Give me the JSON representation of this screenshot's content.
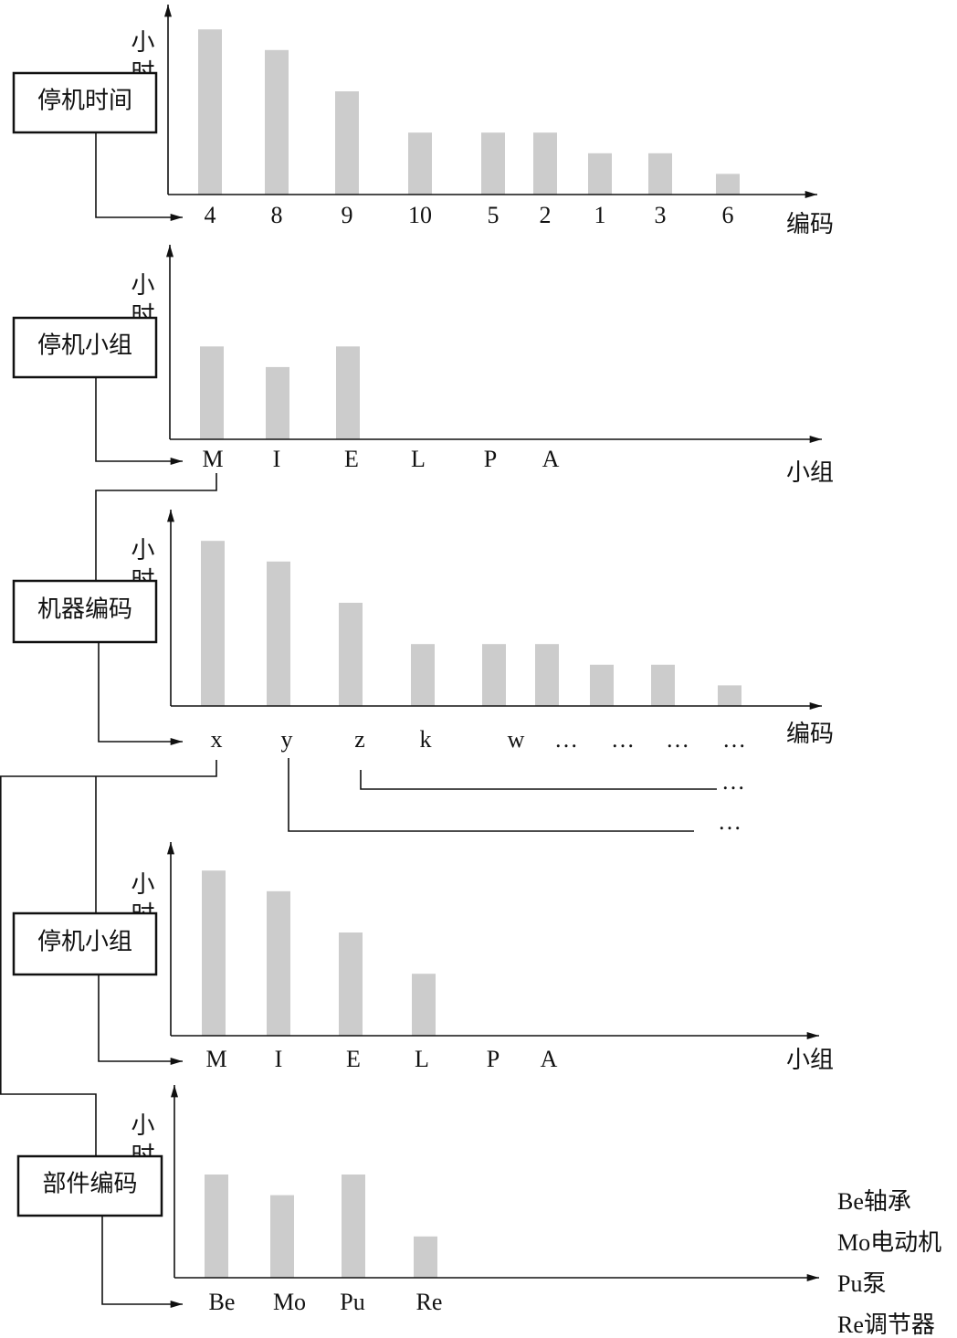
{
  "chart_data": [
    {
      "type": "bar",
      "box_label": "停机时间",
      "y_label": "小时",
      "x_label": "编码",
      "categories": [
        "4",
        "8",
        "9",
        "10",
        "5",
        "2",
        "1",
        "3",
        "6"
      ],
      "values": [
        8,
        7,
        5,
        3,
        3,
        3,
        2,
        2,
        1
      ],
      "ylim": [
        0,
        9
      ],
      "color": "#cccccc"
    },
    {
      "type": "bar",
      "box_label": "停机小组",
      "y_label": "小时",
      "x_label": "小组",
      "categories": [
        "M",
        "I",
        "E",
        "L",
        "P",
        "A"
      ],
      "values": [
        4.5,
        3.5,
        4.5,
        0,
        0,
        0
      ],
      "ylim": [
        0,
        9
      ],
      "color": "#cccccc"
    },
    {
      "type": "bar",
      "box_label": "机器编码",
      "y_label": "小时",
      "x_label": "编码",
      "categories": [
        "x",
        "y",
        "z",
        "k",
        "w",
        "…",
        "…",
        "…",
        "…"
      ],
      "values": [
        8,
        7,
        5,
        3,
        3,
        3,
        2,
        2,
        1
      ],
      "ylim": [
        0,
        9
      ],
      "color": "#cccccc",
      "annotations": [
        "…",
        "…"
      ]
    },
    {
      "type": "bar",
      "box_label": "停机小组",
      "y_label": "小时",
      "x_label": "小组",
      "categories": [
        "M",
        "I",
        "E",
        "L",
        "P",
        "A"
      ],
      "values": [
        8,
        7,
        5,
        3,
        0,
        0
      ],
      "ylim": [
        0,
        9
      ],
      "color": "#cccccc"
    },
    {
      "type": "bar",
      "box_label": "部件编码",
      "y_label": "小时",
      "categories": [
        "Be",
        "Mo",
        "Pu",
        "Re"
      ],
      "values": [
        5,
        4,
        5,
        2
      ],
      "ylim": [
        0,
        9
      ],
      "color": "#cccccc",
      "notes": [
        "Be轴承",
        "Mo电动机",
        "Pu泵",
        "Re调节器"
      ]
    }
  ]
}
